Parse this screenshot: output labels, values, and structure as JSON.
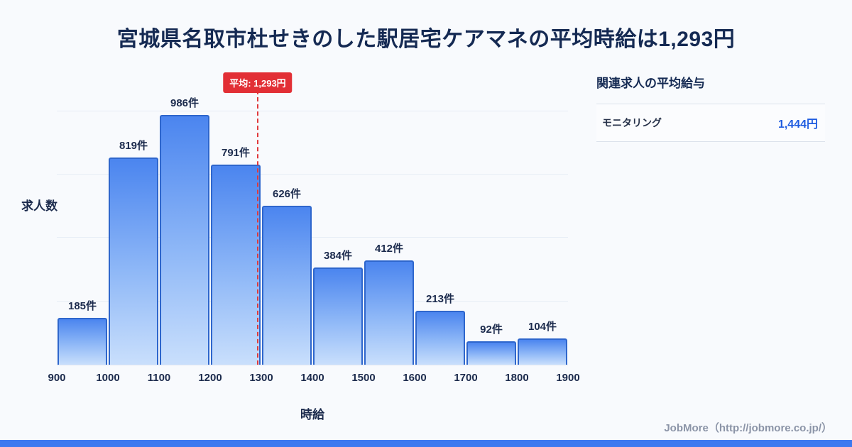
{
  "title": "宮城県名取市杜せきのした駅居宅ケアマネの平均時給は1,293円",
  "chart_data": {
    "type": "bar",
    "subtype": "histogram",
    "title": "宮城県名取市杜せきのした駅居宅ケアマネの平均時給は1,293円",
    "xlabel": "時給",
    "ylabel": "求人数",
    "bin_edges": [
      900,
      1000,
      1100,
      1200,
      1300,
      1400,
      1500,
      1600,
      1700,
      1800,
      1900
    ],
    "values": [
      185,
      819,
      986,
      791,
      626,
      384,
      412,
      213,
      92,
      104
    ],
    "bar_labels": [
      "185件",
      "819件",
      "986件",
      "791件",
      "626件",
      "384件",
      "412件",
      "213件",
      "92件",
      "104件"
    ],
    "unit_suffix": "件",
    "ylim": [
      0,
      1050
    ],
    "gridlines": [
      250,
      500,
      750,
      1000
    ],
    "grid": "horizontal",
    "average": {
      "value": 1293,
      "label": "平均: 1,293円"
    }
  },
  "side_panel": {
    "heading": "関連求人の平均給与",
    "rows": [
      {
        "label": "モニタリング",
        "value": "1,444円"
      }
    ]
  },
  "footer": {
    "credit": "JobMore（http://jobmore.co.jp/）"
  },
  "colors": {
    "background": "#f8fafd",
    "title_text": "#152a53",
    "bar_gradient_top": "#4b85ef",
    "bar_gradient_bottom": "#c9dffc",
    "bar_border": "#2e66cc",
    "average_red": "#e22f35",
    "value_blue": "#1f5ce0",
    "bottom_bar_blue": "#3c79f0",
    "footer_gray": "#8b94a7"
  }
}
